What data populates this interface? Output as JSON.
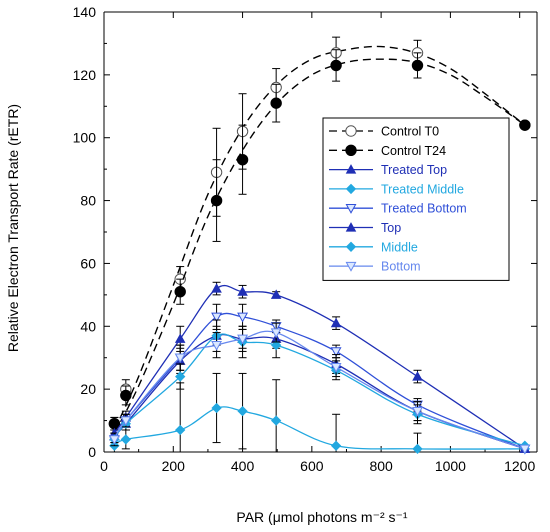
{
  "chart_data": {
    "type": "line",
    "xlabel": "PAR (μmol photons m⁻² s⁻¹",
    "ylabel": "Relative Electron Transport Rate (rETR)",
    "xlim": [
      0,
      1250
    ],
    "ylim": [
      0,
      140
    ],
    "x_ticks": [
      0,
      200,
      400,
      600,
      800,
      1000,
      1200
    ],
    "y_ticks": [
      0,
      20,
      40,
      60,
      80,
      100,
      120,
      140
    ],
    "grid": false,
    "legend_position": "right-center",
    "x": [
      30,
      63,
      220,
      325,
      400,
      497,
      670,
      905,
      1215
    ],
    "series": [
      {
        "name": "Control T0",
        "color": "#000000",
        "dashed": true,
        "marker": "circle-open",
        "values": [
          9,
          20,
          55,
          89,
          102,
          116,
          127,
          127,
          104
        ],
        "errors": [
          2,
          3,
          4,
          14,
          12,
          6,
          5,
          4,
          0
        ],
        "curve": [
          [
            30,
            7
          ],
          [
            100,
            24
          ],
          [
            200,
            53
          ],
          [
            300,
            82
          ],
          [
            400,
            103
          ],
          [
            500,
            117
          ],
          [
            600,
            125
          ],
          [
            700,
            128
          ],
          [
            800,
            129
          ],
          [
            900,
            127
          ],
          [
            1000,
            122
          ],
          [
            1100,
            114
          ],
          [
            1215,
            104
          ]
        ]
      },
      {
        "name": "Control T24",
        "color": "#000000",
        "dashed": true,
        "marker": "circle-filled",
        "values": [
          9,
          18,
          51,
          80,
          93,
          111,
          123,
          123,
          104
        ],
        "errors": [
          2,
          3,
          4,
          13,
          11,
          6,
          5,
          4,
          0
        ],
        "curve": [
          [
            30,
            6
          ],
          [
            100,
            21
          ],
          [
            200,
            47
          ],
          [
            300,
            75
          ],
          [
            400,
            96
          ],
          [
            500,
            111
          ],
          [
            600,
            120
          ],
          [
            700,
            124
          ],
          [
            800,
            125
          ],
          [
            900,
            124
          ],
          [
            1000,
            120
          ],
          [
            1100,
            113
          ],
          [
            1215,
            104
          ]
        ]
      },
      {
        "name": "Treated Top",
        "color": "#1f2fb5",
        "marker": "triangle-up",
        "values": [
          6,
          11,
          36,
          52,
          51,
          50,
          41,
          24,
          1
        ],
        "errors": [
          1,
          2,
          4,
          2,
          2,
          1,
          2,
          2,
          0
        ]
      },
      {
        "name": "Treated Middle",
        "color": "#22a8e0",
        "marker": "diamond",
        "values": [
          2,
          4,
          7,
          14,
          13,
          10,
          2,
          1,
          1
        ],
        "errors": [
          2,
          3,
          15,
          11,
          12,
          13,
          10,
          5,
          0
        ]
      },
      {
        "name": "Treated Bottom",
        "color": "#3050d8",
        "marker": "triangle-down-open",
        "values": [
          4,
          10,
          30,
          43,
          43,
          40,
          32,
          15,
          1
        ],
        "errors": [
          1,
          2,
          4,
          4,
          4,
          2,
          2,
          2,
          0
        ]
      },
      {
        "name": "Top",
        "color": "#1f2fb5",
        "marker": "triangle-up",
        "values": [
          5,
          9,
          29,
          37,
          36,
          36,
          28,
          13,
          1
        ],
        "errors": [
          1,
          2,
          4,
          3,
          3,
          3,
          3,
          3,
          0
        ]
      },
      {
        "name": "Middle",
        "color": "#22a8e0",
        "marker": "diamond",
        "values": [
          4,
          9,
          24,
          37,
          35,
          34,
          26,
          12,
          2
        ],
        "errors": [
          2,
          2,
          4,
          5,
          5,
          4,
          3,
          3,
          0
        ]
      },
      {
        "name": "Bottom",
        "color": "#6688ee",
        "marker": "triangle-down-open",
        "values": [
          4,
          10,
          30,
          34,
          36,
          38,
          27,
          13,
          1
        ],
        "errors": [
          1,
          2,
          4,
          4,
          4,
          3,
          3,
          3,
          0
        ]
      }
    ]
  }
}
